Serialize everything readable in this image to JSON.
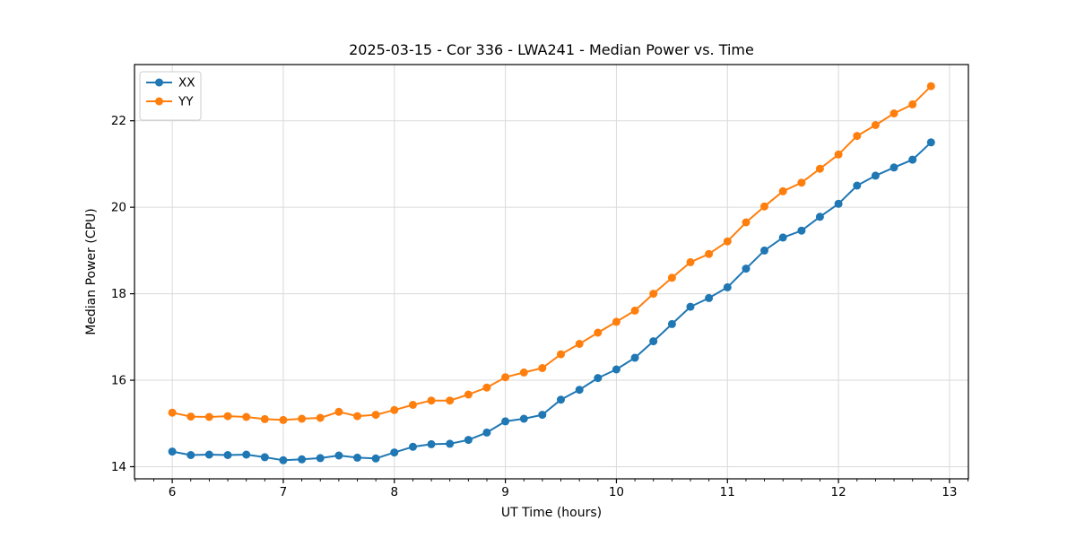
{
  "figure": {
    "title": "2025-03-15 - Cor 336 - LWA241 - Median Power vs. Time",
    "xlabel": "UT Time (hours)",
    "ylabel": "Median Power (CPU)"
  },
  "chart_data": {
    "type": "line",
    "title": "2025-03-15 - Cor 336 - LWA241 - Median Power vs. Time",
    "xlabel": "UT Time (hours)",
    "ylabel": "Median Power (CPU)",
    "xlim": [
      5.66,
      13.17
    ],
    "ylim": [
      13.72,
      23.3
    ],
    "xticks": [
      6,
      7,
      8,
      9,
      10,
      11,
      12,
      13
    ],
    "yticks": [
      14,
      16,
      18,
      20,
      22
    ],
    "x_minor_step": 0.16667,
    "grid": true,
    "grid_color": "#dadada",
    "spine_color": "#000000",
    "background": "#ffffff",
    "legend_position": "upper-left",
    "marker": "circle",
    "x": [
      6.0,
      6.167,
      6.333,
      6.5,
      6.667,
      6.833,
      7.0,
      7.167,
      7.333,
      7.5,
      7.667,
      7.833,
      8.0,
      8.167,
      8.333,
      8.5,
      8.667,
      8.833,
      9.0,
      9.167,
      9.333,
      9.5,
      9.667,
      9.833,
      10.0,
      10.167,
      10.333,
      10.5,
      10.667,
      10.833,
      11.0,
      11.167,
      11.333,
      11.5,
      11.667,
      11.833,
      12.0,
      12.167,
      12.333,
      12.5,
      12.667,
      12.833
    ],
    "series": [
      {
        "name": "XX",
        "color": "#1f77b4",
        "values": [
          14.35,
          14.27,
          14.28,
          14.27,
          14.28,
          14.22,
          14.15,
          14.17,
          14.2,
          14.26,
          14.21,
          14.19,
          14.33,
          14.46,
          14.52,
          14.53,
          14.62,
          14.79,
          15.05,
          15.11,
          15.2,
          15.55,
          15.78,
          16.05,
          16.25,
          16.52,
          16.9,
          17.3,
          17.7,
          17.9,
          18.15,
          18.58,
          19.0,
          19.3,
          19.46,
          19.78,
          20.08,
          20.5,
          20.73,
          20.92,
          21.1,
          21.5
        ]
      },
      {
        "name": "YY",
        "color": "#ff7f0e",
        "values": [
          15.25,
          15.16,
          15.15,
          15.17,
          15.15,
          15.1,
          15.08,
          15.11,
          15.13,
          15.27,
          15.17,
          15.2,
          15.31,
          15.43,
          15.53,
          15.53,
          15.67,
          15.83,
          16.07,
          16.18,
          16.28,
          16.6,
          16.84,
          17.1,
          17.35,
          17.61,
          18.0,
          18.37,
          18.73,
          18.92,
          19.21,
          19.65,
          20.02,
          20.37,
          20.57,
          20.89,
          21.22,
          21.65,
          21.9,
          22.17,
          22.38,
          22.8
        ]
      }
    ]
  }
}
